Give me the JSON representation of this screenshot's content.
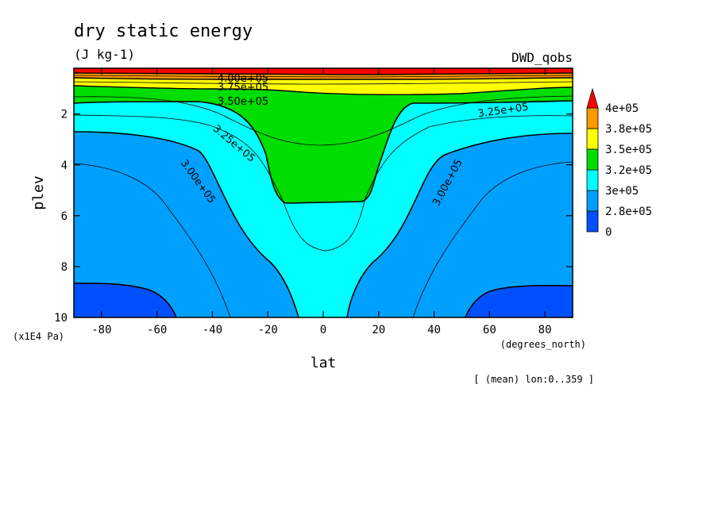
{
  "chart_data": {
    "type": "contour",
    "title": "dry static energy",
    "units": "(J kg-1)",
    "dataset": "DWD_qobs",
    "xlabel": "lat",
    "xunits": "(degrees_north)",
    "ylabel": "plev",
    "yunits": "(x1E4 Pa)",
    "note": "[ (mean) lon:0..359 ]",
    "xlim": [
      -90,
      90
    ],
    "ylim": [
      10,
      0.2
    ],
    "y_inverted": true,
    "xticks": [
      "-80",
      "-60",
      "-40",
      "-20",
      "0",
      "20",
      "40",
      "60",
      "80"
    ],
    "yticks": [
      "2",
      "4",
      "6",
      "8",
      "10"
    ],
    "legend": {
      "position": "right",
      "labels": [
        "4e+05",
        "3.8e+05",
        "3.5e+05",
        "3.2e+05",
        "3e+05",
        "2.8e+05",
        "0"
      ],
      "colors": [
        "#0050ff",
        "#00a0ff",
        "#00ffff",
        "#00dd00",
        "#ffff00",
        "#ff9900",
        "#ff0000"
      ]
    },
    "fill_colors": {
      "below_2.75e5": "#0050ff",
      "2.75e5_3.00e5": "#00a0ff",
      "3.00e5_3.25e5": "#00ffff",
      "3.25e5_3.50e5": "#00dd00",
      "3.50e5_3.75e5": "#ffff00",
      "3.75e5_4.00e5": "#ff9900",
      "above_4.00e5": "#ff0000"
    },
    "contour_labels": [
      {
        "text": "4.00e+05",
        "lat": -3,
        "plev": 0.5
      },
      {
        "text": "3.75e+05",
        "lat": -3,
        "plev": 0.8
      },
      {
        "text": "3.50e+05",
        "lat": -3,
        "plev": 1.3
      },
      {
        "text": "3.25e+05",
        "lat": -35,
        "plev": 3.0
      },
      {
        "text": "3.25e+05",
        "lat": 68,
        "plev": 1.8
      },
      {
        "text": "3.00e+05",
        "lat": -48,
        "plev": 4.6
      },
      {
        "text": "3.00e+05",
        "lat": 44,
        "plev": 4.6
      }
    ]
  }
}
